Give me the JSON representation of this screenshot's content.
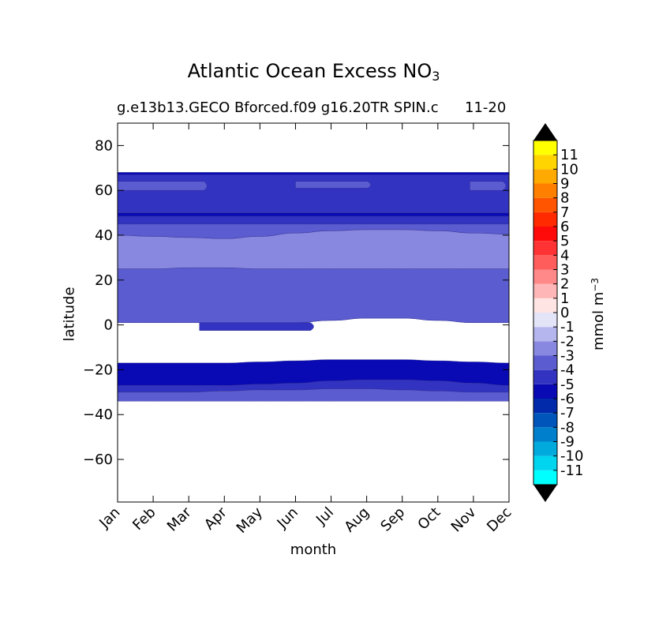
{
  "chart_data": {
    "type": "contour",
    "title_main": "Atlantic Ocean Excess NO",
    "title_subscript": "3",
    "subtitle_left": "g.e13b13.GECO Bforced.f09 g16.20TR SPIN.c",
    "subtitle_right": "11-20",
    "xlabel": "month",
    "ylabel": "latitude",
    "x_ticks": [
      "Jan",
      "Feb",
      "Mar",
      "Apr",
      "May",
      "Jun",
      "Jul",
      "Aug",
      "Sep",
      "Oct",
      "Nov",
      "Dec"
    ],
    "y_ticks": [
      80,
      60,
      40,
      20,
      0,
      -20,
      -40,
      -60
    ],
    "y_tick_labels": [
      "80",
      "60",
      "40",
      "20",
      "0",
      "−20",
      "−40",
      "−60"
    ],
    "ylim": [
      -79,
      90
    ],
    "data_lat_range": [
      -34,
      68
    ],
    "colorbar": {
      "label": "mmol m",
      "label_superscript": "−3",
      "levels": [
        "-11",
        "-10",
        "-9",
        "-8",
        "-7",
        "-6",
        "-5",
        "-4",
        "-3",
        "-2",
        "-1",
        "0",
        "1",
        "2",
        "3",
        "4",
        "5",
        "6",
        "7",
        "8",
        "9",
        "10",
        "11"
      ],
      "colors": [
        "#00ffff",
        "#00d4ee",
        "#00aadd",
        "#0080cc",
        "#0055bb",
        "#002aaa",
        "#0a0ab4",
        "#3333c2",
        "#5c5cd1",
        "#8888e0",
        "#b6b6ee",
        "#e4e4f8",
        "#ffe4e4",
        "#ffb6b6",
        "#ff8888",
        "#ff5c5c",
        "#ff3333",
        "#ff0a0a",
        "#ff2a00",
        "#ff5500",
        "#ff8000",
        "#ffaa00",
        "#ffd400",
        "#ffff00"
      ],
      "extend_color": "#000000"
    },
    "bands": [
      {
        "level": "-5",
        "lower": [
          1,
          1,
          1,
          1,
          1,
          1,
          2,
          3,
          3,
          2,
          1,
          1
        ],
        "upper": [
          17,
          17,
          17,
          17,
          16.5,
          16,
          15.5,
          15.5,
          15.5,
          16,
          16.5,
          17
        ]
      },
      {
        "level": "-6",
        "lower": [
          -27,
          -27,
          -27,
          -27,
          -26.5,
          -26,
          -25,
          -24.5,
          -24.5,
          -25,
          -26,
          -27
        ],
        "upper": [
          -17,
          -17,
          -17,
          -17,
          -16.5,
          -16,
          -15.5,
          -15.5,
          -15.5,
          -16,
          -16.5,
          -17
        ]
      },
      {
        "level": "-5",
        "lower": [
          -30,
          -30,
          -30,
          -29.5,
          -29,
          -29,
          -28.5,
          -28.5,
          -29,
          -29.5,
          -30,
          -30
        ],
        "upper": [
          -27,
          -27,
          -27,
          -27,
          -26.5,
          -26,
          -25,
          -24.5,
          -24.5,
          -25,
          -26,
          -27
        ]
      },
      {
        "level": "-4",
        "lower": [
          -34,
          -34,
          -34,
          -34,
          -34,
          -34,
          -34,
          -34,
          -34,
          -34,
          -34,
          -34
        ],
        "upper": [
          -30,
          -30,
          -30,
          -29.5,
          -29,
          -29,
          -28.5,
          -28.5,
          -29,
          -29.5,
          -30,
          -30
        ]
      },
      {
        "level": "-4",
        "lower": [
          1,
          1,
          1,
          1,
          1,
          1,
          2,
          3,
          3,
          2,
          1,
          1
        ],
        "upper": [
          25,
          25,
          25.5,
          25.5,
          25,
          25,
          25,
          25,
          25,
          25,
          25,
          25
        ]
      },
      {
        "level": "-3",
        "lower": [
          25,
          25,
          25.5,
          25.5,
          25,
          25,
          25,
          25,
          25,
          25,
          25,
          25
        ],
        "upper": [
          40,
          39.5,
          39,
          38.5,
          39.5,
          41,
          42,
          42.5,
          42.5,
          42,
          41,
          40.5
        ]
      },
      {
        "level": "-4",
        "lower": [
          40,
          39.5,
          39,
          38.5,
          39.5,
          41,
          42,
          42.5,
          42.5,
          42,
          41,
          40.5
        ],
        "upper": [
          45,
          45,
          45,
          45,
          45,
          45,
          45,
          45,
          45,
          45,
          45,
          45
        ]
      },
      {
        "level": "-5",
        "lower": [
          45,
          45,
          45,
          45,
          45,
          45,
          45,
          45,
          45,
          45,
          45,
          45
        ],
        "upper": [
          48.5,
          48.5,
          48.5,
          48.5,
          48.5,
          48.5,
          48.5,
          48.5,
          48.5,
          48.5,
          48.5,
          48.5
        ]
      },
      {
        "level": "-6",
        "lower": [
          48.5,
          48.5,
          48.5,
          48.5,
          48.5,
          48.5,
          48.5,
          48.5,
          48.5,
          48.5,
          48.5,
          48.5
        ],
        "upper": [
          50,
          50,
          50,
          50,
          50,
          50,
          50,
          50,
          50,
          50,
          50,
          50
        ]
      },
      {
        "level": "-5",
        "lower": [
          50,
          50,
          50,
          50,
          50,
          50,
          50,
          50,
          50,
          50,
          50,
          50
        ],
        "upper": [
          68,
          68,
          68,
          68,
          68,
          68,
          68,
          68,
          68,
          68,
          68,
          68
        ]
      },
      {
        "level": "-6",
        "lower": [
          67,
          67,
          67,
          67,
          67,
          67,
          67,
          67,
          67,
          67,
          67,
          67
        ],
        "upper": [
          68,
          68,
          68,
          68,
          68,
          68,
          68,
          68,
          68,
          68,
          68,
          68
        ]
      }
    ],
    "patches": [
      {
        "level": "-4",
        "month_start": 0,
        "month_end": 2.6,
        "lat": [
          60,
          64
        ]
      },
      {
        "level": "-4",
        "month_start": 5,
        "month_end": 7.2,
        "lat": [
          61,
          64
        ]
      },
      {
        "level": "-4",
        "month_start": 9.9,
        "month_end": 11,
        "lat": [
          60,
          64
        ]
      },
      {
        "level": "-5",
        "month_start": 2.3,
        "month_end": 5.6,
        "lat": [
          -2.5,
          1
        ]
      }
    ]
  }
}
